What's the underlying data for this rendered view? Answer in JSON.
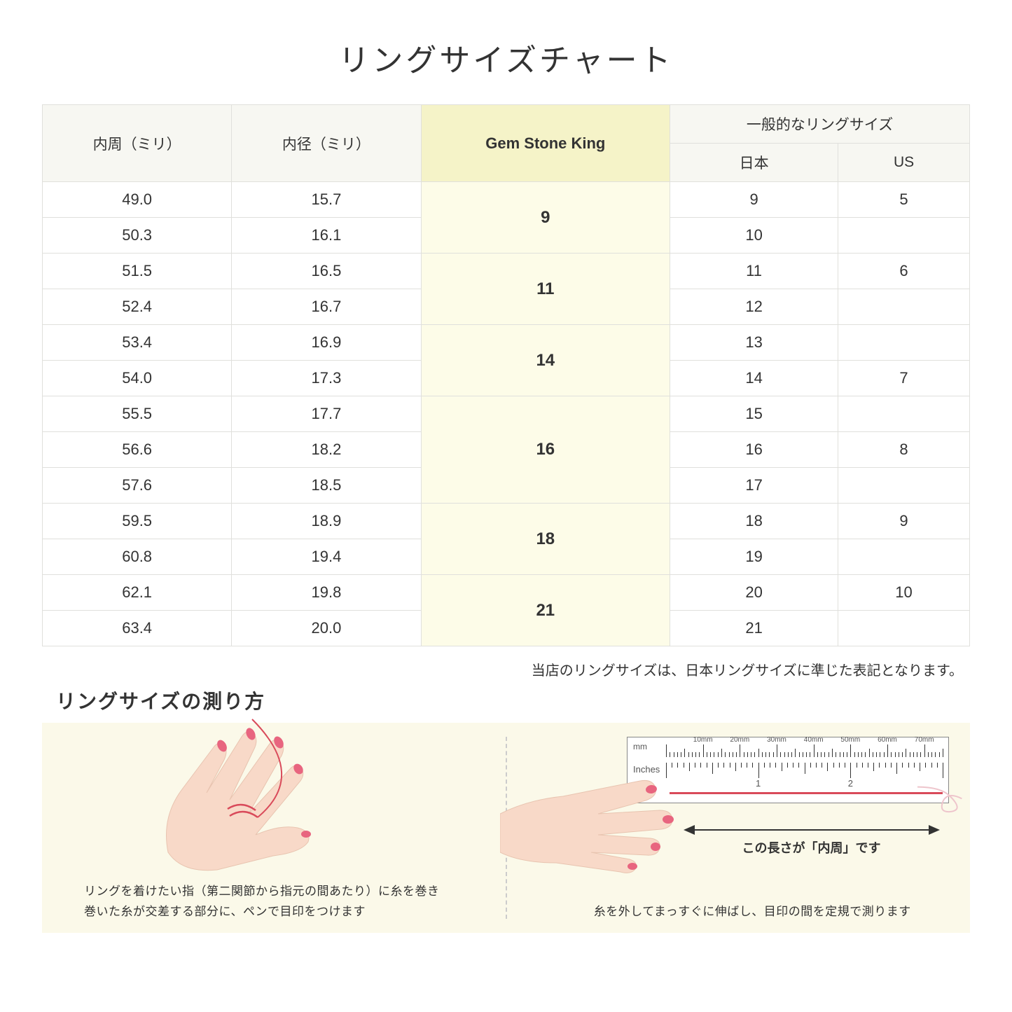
{
  "title": "リングサイズチャート",
  "table": {
    "headers": {
      "circumference": "内周（ミリ）",
      "diameter": "内径（ミリ）",
      "gsk": "Gem Stone King",
      "general_group": "一般的なリングサイズ",
      "japan": "日本",
      "us": "US"
    },
    "header_bg": "#f7f7f2",
    "gsk_header_bg": "#f5f3c8",
    "gsk_cell_bg": "#fdfce8",
    "border_color": "#e0e0dc",
    "groups": [
      {
        "gsk": "9",
        "rows": [
          {
            "circ": "49.0",
            "dia": "15.7",
            "jp": "9",
            "us": "5"
          },
          {
            "circ": "50.3",
            "dia": "16.1",
            "jp": "10",
            "us": ""
          }
        ]
      },
      {
        "gsk": "11",
        "rows": [
          {
            "circ": "51.5",
            "dia": "16.5",
            "jp": "11",
            "us": "6"
          },
          {
            "circ": "52.4",
            "dia": "16.7",
            "jp": "12",
            "us": ""
          }
        ]
      },
      {
        "gsk": "14",
        "rows": [
          {
            "circ": "53.4",
            "dia": "16.9",
            "jp": "13",
            "us": ""
          },
          {
            "circ": "54.0",
            "dia": "17.3",
            "jp": "14",
            "us": "7"
          }
        ]
      },
      {
        "gsk": "16",
        "rows": [
          {
            "circ": "55.5",
            "dia": "17.7",
            "jp": "15",
            "us": ""
          },
          {
            "circ": "56.6",
            "dia": "18.2",
            "jp": "16",
            "us": "8"
          },
          {
            "circ": "57.6",
            "dia": "18.5",
            "jp": "17",
            "us": ""
          }
        ]
      },
      {
        "gsk": "18",
        "rows": [
          {
            "circ": "59.5",
            "dia": "18.9",
            "jp": "18",
            "us": "9"
          },
          {
            "circ": "60.8",
            "dia": "19.4",
            "jp": "19",
            "us": ""
          }
        ]
      },
      {
        "gsk": "21",
        "rows": [
          {
            "circ": "62.1",
            "dia": "19.8",
            "jp": "20",
            "us": "10"
          },
          {
            "circ": "63.4",
            "dia": "20.0",
            "jp": "21",
            "us": ""
          }
        ]
      }
    ]
  },
  "note": "当店のリングサイズは、日本リングサイズに準じた表記となります。",
  "measure": {
    "title": "リングサイズの測り方",
    "panel_bg": "#fbf9e9",
    "hand_skin": "#f8d9c8",
    "nail_color": "#e8657f",
    "thread_color": "#d94a5a",
    "left_caption_1": "リングを着けたい指（第二関節から指元の間あたり）に糸を巻き",
    "left_caption_2": "巻いた糸が交差する部分に、ペンで目印をつけます",
    "right_arrow_text": "この長さが「内周」です",
    "right_caption": "糸を外してまっすぐに伸ばし、目印の間を定規で測ります",
    "ruler": {
      "mm_label": "mm",
      "inches_label": "Inches",
      "mm_ticks": [
        "10mm",
        "20mm",
        "30mm",
        "40mm",
        "50mm",
        "60mm",
        "70mm"
      ],
      "inch_major": [
        "1",
        "2"
      ]
    }
  }
}
